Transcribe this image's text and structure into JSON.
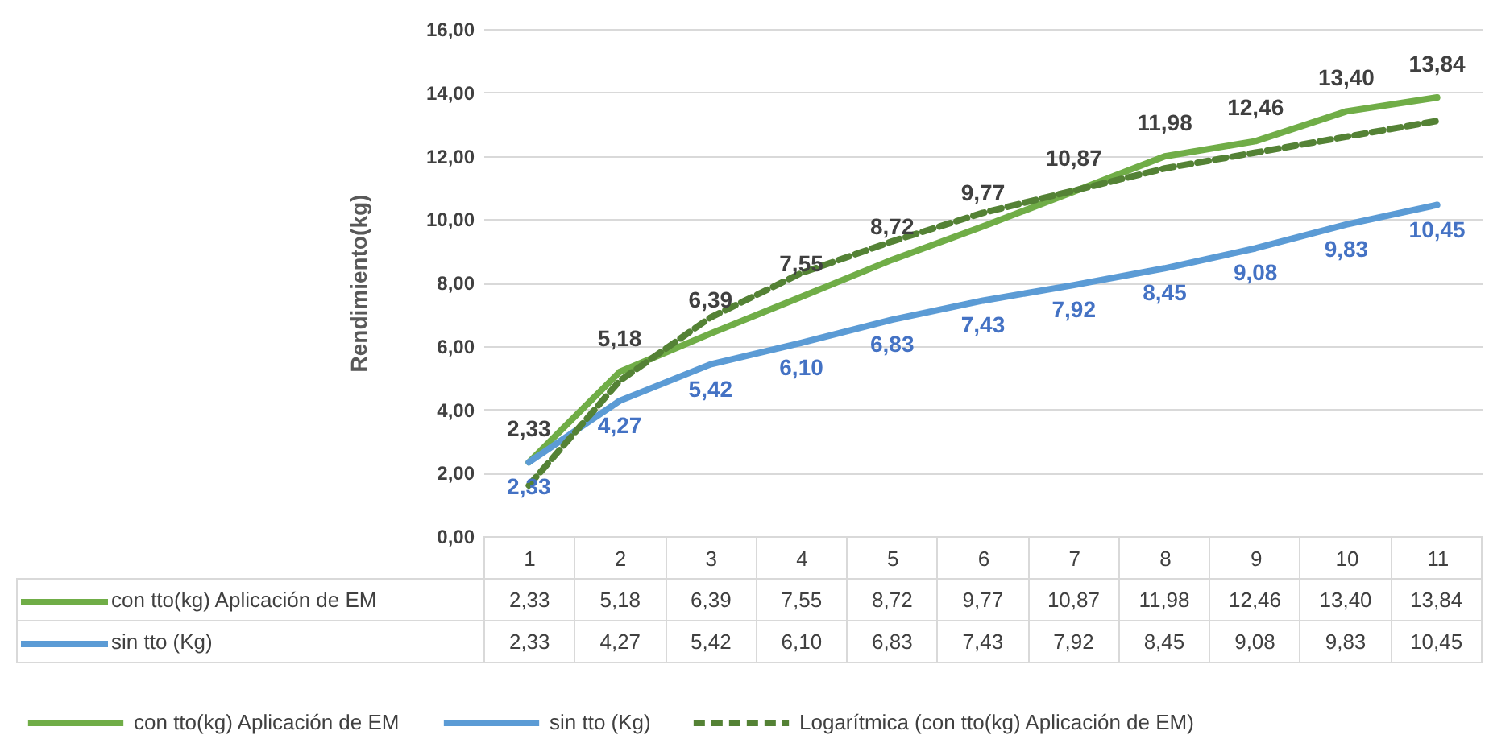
{
  "chart_data": {
    "type": "line",
    "ylabel": "Rendimiento(kg)",
    "categories": [
      "1",
      "2",
      "3",
      "4",
      "5",
      "6",
      "7",
      "8",
      "9",
      "10",
      "11"
    ],
    "series": [
      {
        "name": "con tto(kg) Aplicación de EM",
        "color": "#70ad47",
        "values": [
          2.33,
          5.18,
          6.39,
          7.55,
          8.72,
          9.77,
          10.87,
          11.98,
          12.46,
          13.4,
          13.84
        ],
        "value_labels": [
          "2,33",
          "5,18",
          "6,39",
          "7,55",
          "8,72",
          "9,77",
          "10,87",
          "11,98",
          "12,46",
          "13,40",
          "13,84"
        ]
      },
      {
        "name": "sin tto (Kg)",
        "color": "#5b9bd5",
        "values": [
          2.33,
          4.27,
          5.42,
          6.1,
          6.83,
          7.43,
          7.92,
          8.45,
          9.08,
          9.83,
          10.45
        ],
        "value_labels": [
          "2,33",
          "4,27",
          "5,42",
          "6,10",
          "6,83",
          "7,43",
          "7,92",
          "8,45",
          "9,08",
          "9,83",
          "10,45"
        ]
      },
      {
        "name": "Logarítmica (con tto(kg) Aplicación de EM)",
        "color": "#548235",
        "line_style": "dashed",
        "values": [
          1.6,
          4.9,
          6.9,
          8.3,
          9.3,
          10.2,
          10.9,
          11.6,
          12.1,
          12.6,
          13.1
        ]
      }
    ],
    "ylim": [
      0,
      16
    ],
    "yticks": [
      {
        "value": 0,
        "label": "0,00"
      },
      {
        "value": 2,
        "label": "2,00"
      },
      {
        "value": 4,
        "label": "4,00"
      },
      {
        "value": 6,
        "label": "6,00"
      },
      {
        "value": 8,
        "label": "8,00"
      },
      {
        "value": 10,
        "label": "10,00"
      },
      {
        "value": 12,
        "label": "12,00"
      },
      {
        "value": 14,
        "label": "14,00"
      },
      {
        "value": 16,
        "label": "16,00"
      }
    ],
    "grid": "y",
    "legend": "bottom",
    "marker": "none",
    "line_style": "solid"
  }
}
